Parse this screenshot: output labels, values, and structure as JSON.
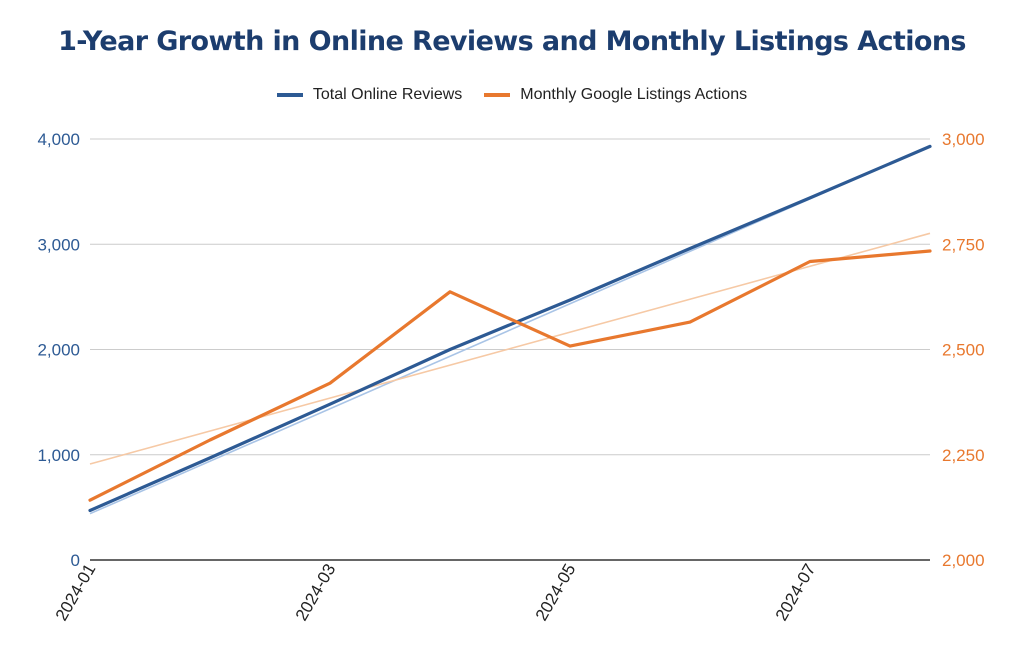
{
  "chart_data": {
    "type": "line",
    "title": "1-Year Growth in Online Reviews and Monthly Listings Actions",
    "title_color": "#1c3d6e",
    "x": [
      "2024-01",
      "2024-02",
      "2024-03",
      "2024-04",
      "2024-05",
      "2024-06",
      "2024-07",
      "2024-08"
    ],
    "x_tick_labels": [
      "2024-01",
      "2024-03",
      "2024-05",
      "2024-07"
    ],
    "left_axis": {
      "ylim": [
        0,
        4000
      ],
      "ticks": [
        "0",
        "1,000",
        "2,000",
        "3,000",
        "4,000"
      ],
      "color": "#2d5a94"
    },
    "right_axis": {
      "ylim": [
        2000,
        3000
      ],
      "ticks": [
        "2,000",
        "2,250",
        "2,500",
        "2,750",
        "3,000"
      ],
      "color": "#e8782e"
    },
    "series": [
      {
        "name": "Total Online Reviews",
        "axis": "left",
        "color": "#2d5a94",
        "values": [
          470,
          970,
          1480,
          2000,
          2470,
          2960,
          3440,
          3930
        ]
      },
      {
        "name": "Monthly Google Listings Actions",
        "axis": "right",
        "color": "#e8782e",
        "values": [
          2142,
          2285,
          2420,
          2637,
          2508,
          2565,
          2709,
          2734
        ]
      }
    ],
    "trendlines": [
      {
        "series": "Total Online Reviews",
        "axis": "left",
        "color": "#a9c4e6",
        "values": [
          440,
          3930
        ]
      },
      {
        "series": "Monthly Google Listings Actions",
        "axis": "right",
        "color": "#f6c9a5",
        "values": [
          2228,
          2776
        ]
      }
    ],
    "legend_position": "top",
    "grid": true
  }
}
